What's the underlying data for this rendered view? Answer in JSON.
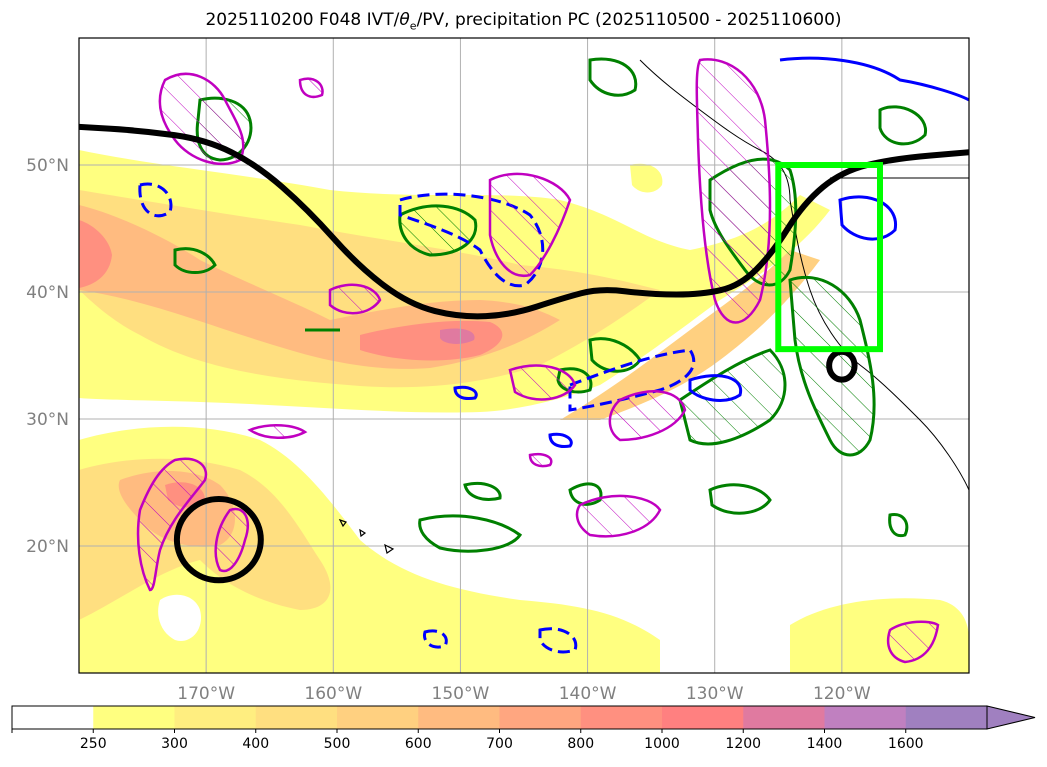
{
  "title": {
    "prefix": "2025110200 F048 IVT/",
    "theta": "θ",
    "theta_sub": "e",
    "suffix": "/PV, precipitation PC (2025110500 - 2025110600)"
  },
  "colors": {
    "ivt_fill": [
      "#ffffff",
      "#ffff80",
      "#ffee80",
      "#ffdf80",
      "#ffd080",
      "#ffbb80",
      "#ffa680",
      "#ff9080",
      "#ff8080",
      "#e07aa0",
      "#c080c0",
      "#a080c0"
    ],
    "green_contour": "#008000",
    "blue_contour": "#0000ff",
    "magenta_contour": "#c000c0",
    "black_line": "#000000",
    "box": "#00ff00",
    "grid": "#b0b0b0"
  },
  "chart_data": {
    "type": "map-contour",
    "projection": "equirectangular",
    "lon_range": [
      -180,
      -110
    ],
    "lat_range": [
      10,
      60
    ],
    "lon_ticks": [
      {
        "value": -170,
        "label": "170°W"
      },
      {
        "value": -160,
        "label": "160°W"
      },
      {
        "value": -150,
        "label": "150°W"
      },
      {
        "value": -140,
        "label": "140°W"
      },
      {
        "value": -130,
        "label": "130°W"
      },
      {
        "value": -120,
        "label": "120°W"
      }
    ],
    "lat_ticks": [
      {
        "value": 20,
        "label": "20°N"
      },
      {
        "value": 30,
        "label": "30°N"
      },
      {
        "value": 40,
        "label": "40°N"
      },
      {
        "value": 50,
        "label": "50°N"
      }
    ],
    "grid": true,
    "colorbar": {
      "levels": [
        250,
        300,
        400,
        500,
        600,
        700,
        800,
        1000,
        1200,
        1400,
        1600
      ],
      "labels": [
        "250",
        "300",
        "400",
        "500",
        "600",
        "700",
        "800",
        "1000",
        "1200",
        "1400",
        "1600"
      ],
      "extend": "max"
    },
    "ivt_maxima": [
      {
        "lon": -180,
        "lat": 43,
        "value": 1000
      },
      {
        "lon": -150,
        "lat": 37,
        "value": 1200
      },
      {
        "lon": -169,
        "lat": 23,
        "value": 700
      }
    ],
    "black_line": [
      [
        -180,
        53
      ],
      [
        -175,
        52.7
      ],
      [
        -170,
        52
      ],
      [
        -166,
        50
      ],
      [
        -162,
        46.5
      ],
      [
        -158,
        42
      ],
      [
        -154,
        39
      ],
      [
        -150,
        38
      ],
      [
        -146,
        38.2
      ],
      [
        -142,
        39.5
      ],
      [
        -139,
        40.3
      ],
      [
        -135,
        39.8
      ],
      [
        -131,
        39.8
      ],
      [
        -128,
        40.5
      ],
      [
        -125.5,
        43
      ],
      [
        -123,
        47
      ],
      [
        -120,
        49.5
      ],
      [
        -116,
        50.5
      ],
      [
        -110,
        51
      ]
    ],
    "black_ellipses": [
      {
        "lon": -169,
        "lat": 20.5,
        "rlon": 3.3,
        "rlat": 3.2
      },
      {
        "lon": -120,
        "lat": 34.2,
        "rlon": 1.0,
        "rlat": 1.1
      }
    ],
    "green_box": {
      "lon_min": -125,
      "lon_max": -117,
      "lat_min": 35.5,
      "lat_max": 50
    }
  }
}
